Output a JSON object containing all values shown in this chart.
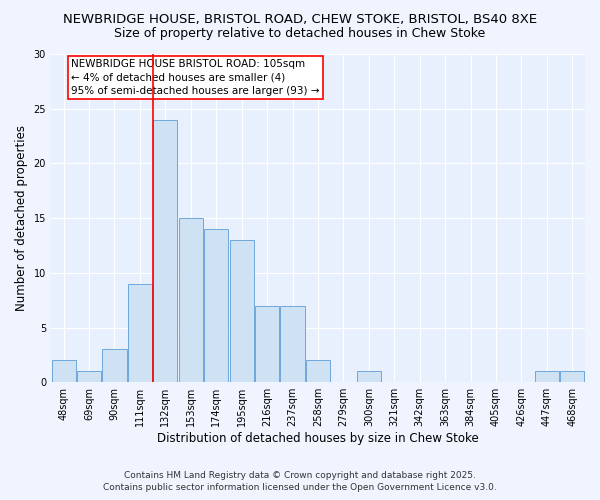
{
  "title_line1": "NEWBRIDGE HOUSE, BRISTOL ROAD, CHEW STOKE, BRISTOL, BS40 8XE",
  "title_line2": "Size of property relative to detached houses in Chew Stoke",
  "xlabel": "Distribution of detached houses by size in Chew Stoke",
  "ylabel": "Number of detached properties",
  "bar_labels": [
    "48sqm",
    "69sqm",
    "90sqm",
    "111sqm",
    "132sqm",
    "153sqm",
    "174sqm",
    "195sqm",
    "216sqm",
    "237sqm",
    "258sqm",
    "279sqm",
    "300sqm",
    "321sqm",
    "342sqm",
    "363sqm",
    "384sqm",
    "405sqm",
    "426sqm",
    "447sqm",
    "468sqm"
  ],
  "bar_values": [
    2,
    1,
    3,
    9,
    24,
    15,
    14,
    13,
    7,
    7,
    2,
    0,
    1,
    0,
    0,
    0,
    0,
    0,
    0,
    1,
    1
  ],
  "bar_color": "#cfe2f3",
  "bar_edge_color": "#6fa8dc",
  "ylim": [
    0,
    30
  ],
  "yticks": [
    0,
    5,
    10,
    15,
    20,
    25,
    30
  ],
  "red_line_x": 3.5,
  "annotation_text": "NEWBRIDGE HOUSE BRISTOL ROAD: 105sqm\n← 4% of detached houses are smaller (4)\n95% of semi-detached houses are larger (93) →",
  "footer_line1": "Contains HM Land Registry data © Crown copyright and database right 2025.",
  "footer_line2": "Contains public sector information licensed under the Open Government Licence v3.0.",
  "bg_color": "#f0f4ff",
  "plot_bg_color": "#e8f0fe",
  "grid_color": "#ffffff",
  "title_fontsize": 9.5,
  "subtitle_fontsize": 9,
  "axis_label_fontsize": 8.5,
  "tick_fontsize": 7,
  "annotation_fontsize": 7.5,
  "footer_fontsize": 6.5
}
